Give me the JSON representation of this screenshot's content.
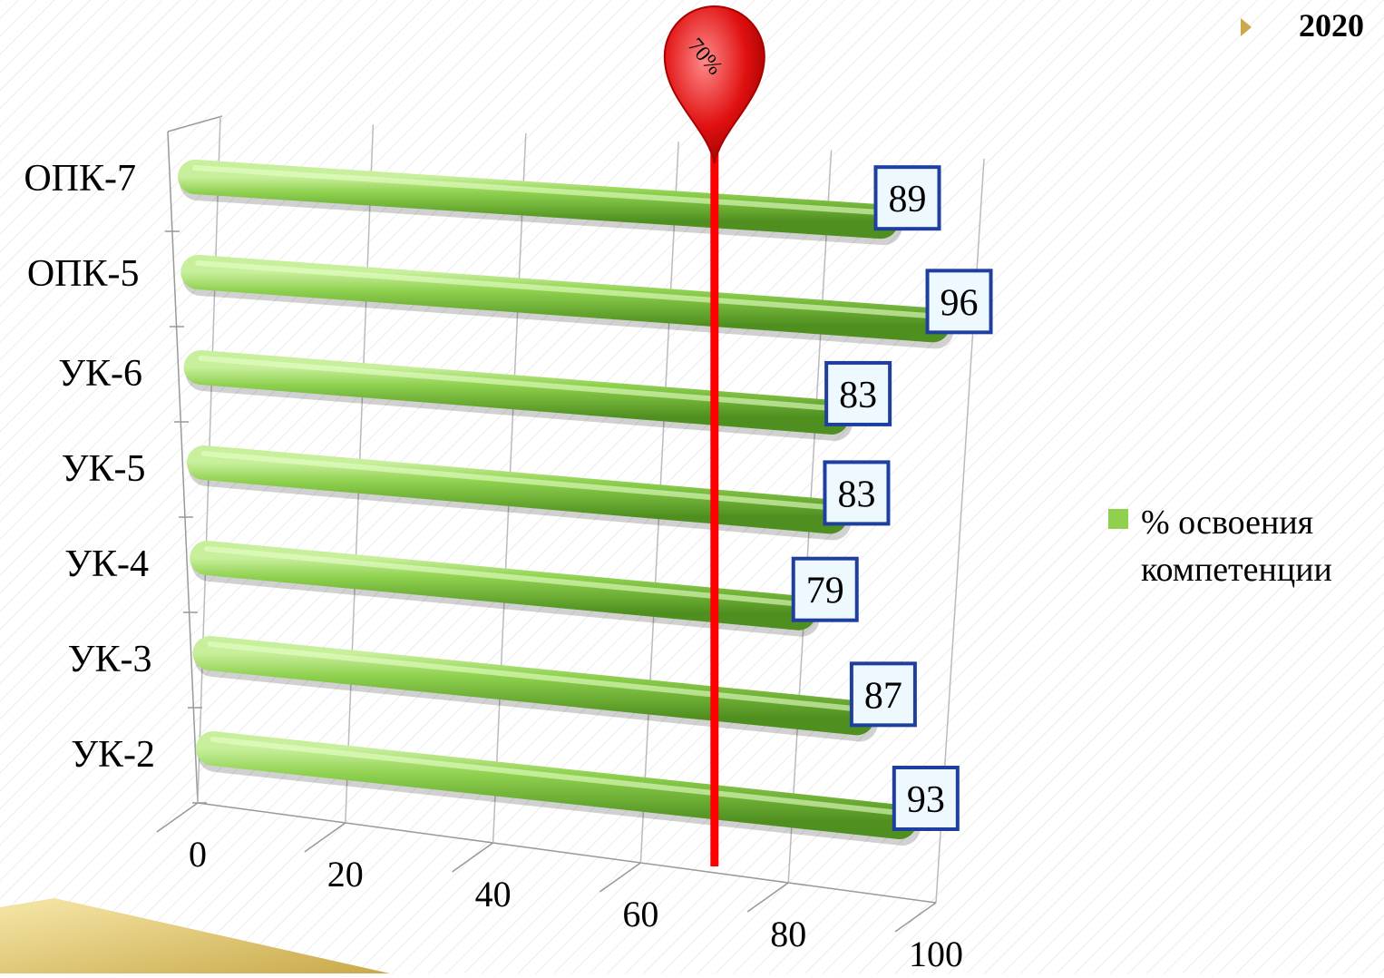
{
  "chart_data": {
    "type": "bar",
    "title": "2020",
    "categories": [
      "ОПК-7",
      "ОПК-5",
      "УК-6",
      "УК-5",
      "УК-4",
      "УК-3",
      "УК-2"
    ],
    "series": [
      {
        "name": "% освоения компетенции",
        "color": "#8fd14f",
        "values": [
          89,
          96,
          83,
          83,
          79,
          87,
          93
        ]
      }
    ],
    "xlim": [
      0,
      100
    ],
    "xticks": [
      0,
      20,
      40,
      60,
      80,
      100
    ],
    "grid": true,
    "threshold": {
      "value": 70,
      "label": "70%"
    },
    "legend": "right"
  }
}
